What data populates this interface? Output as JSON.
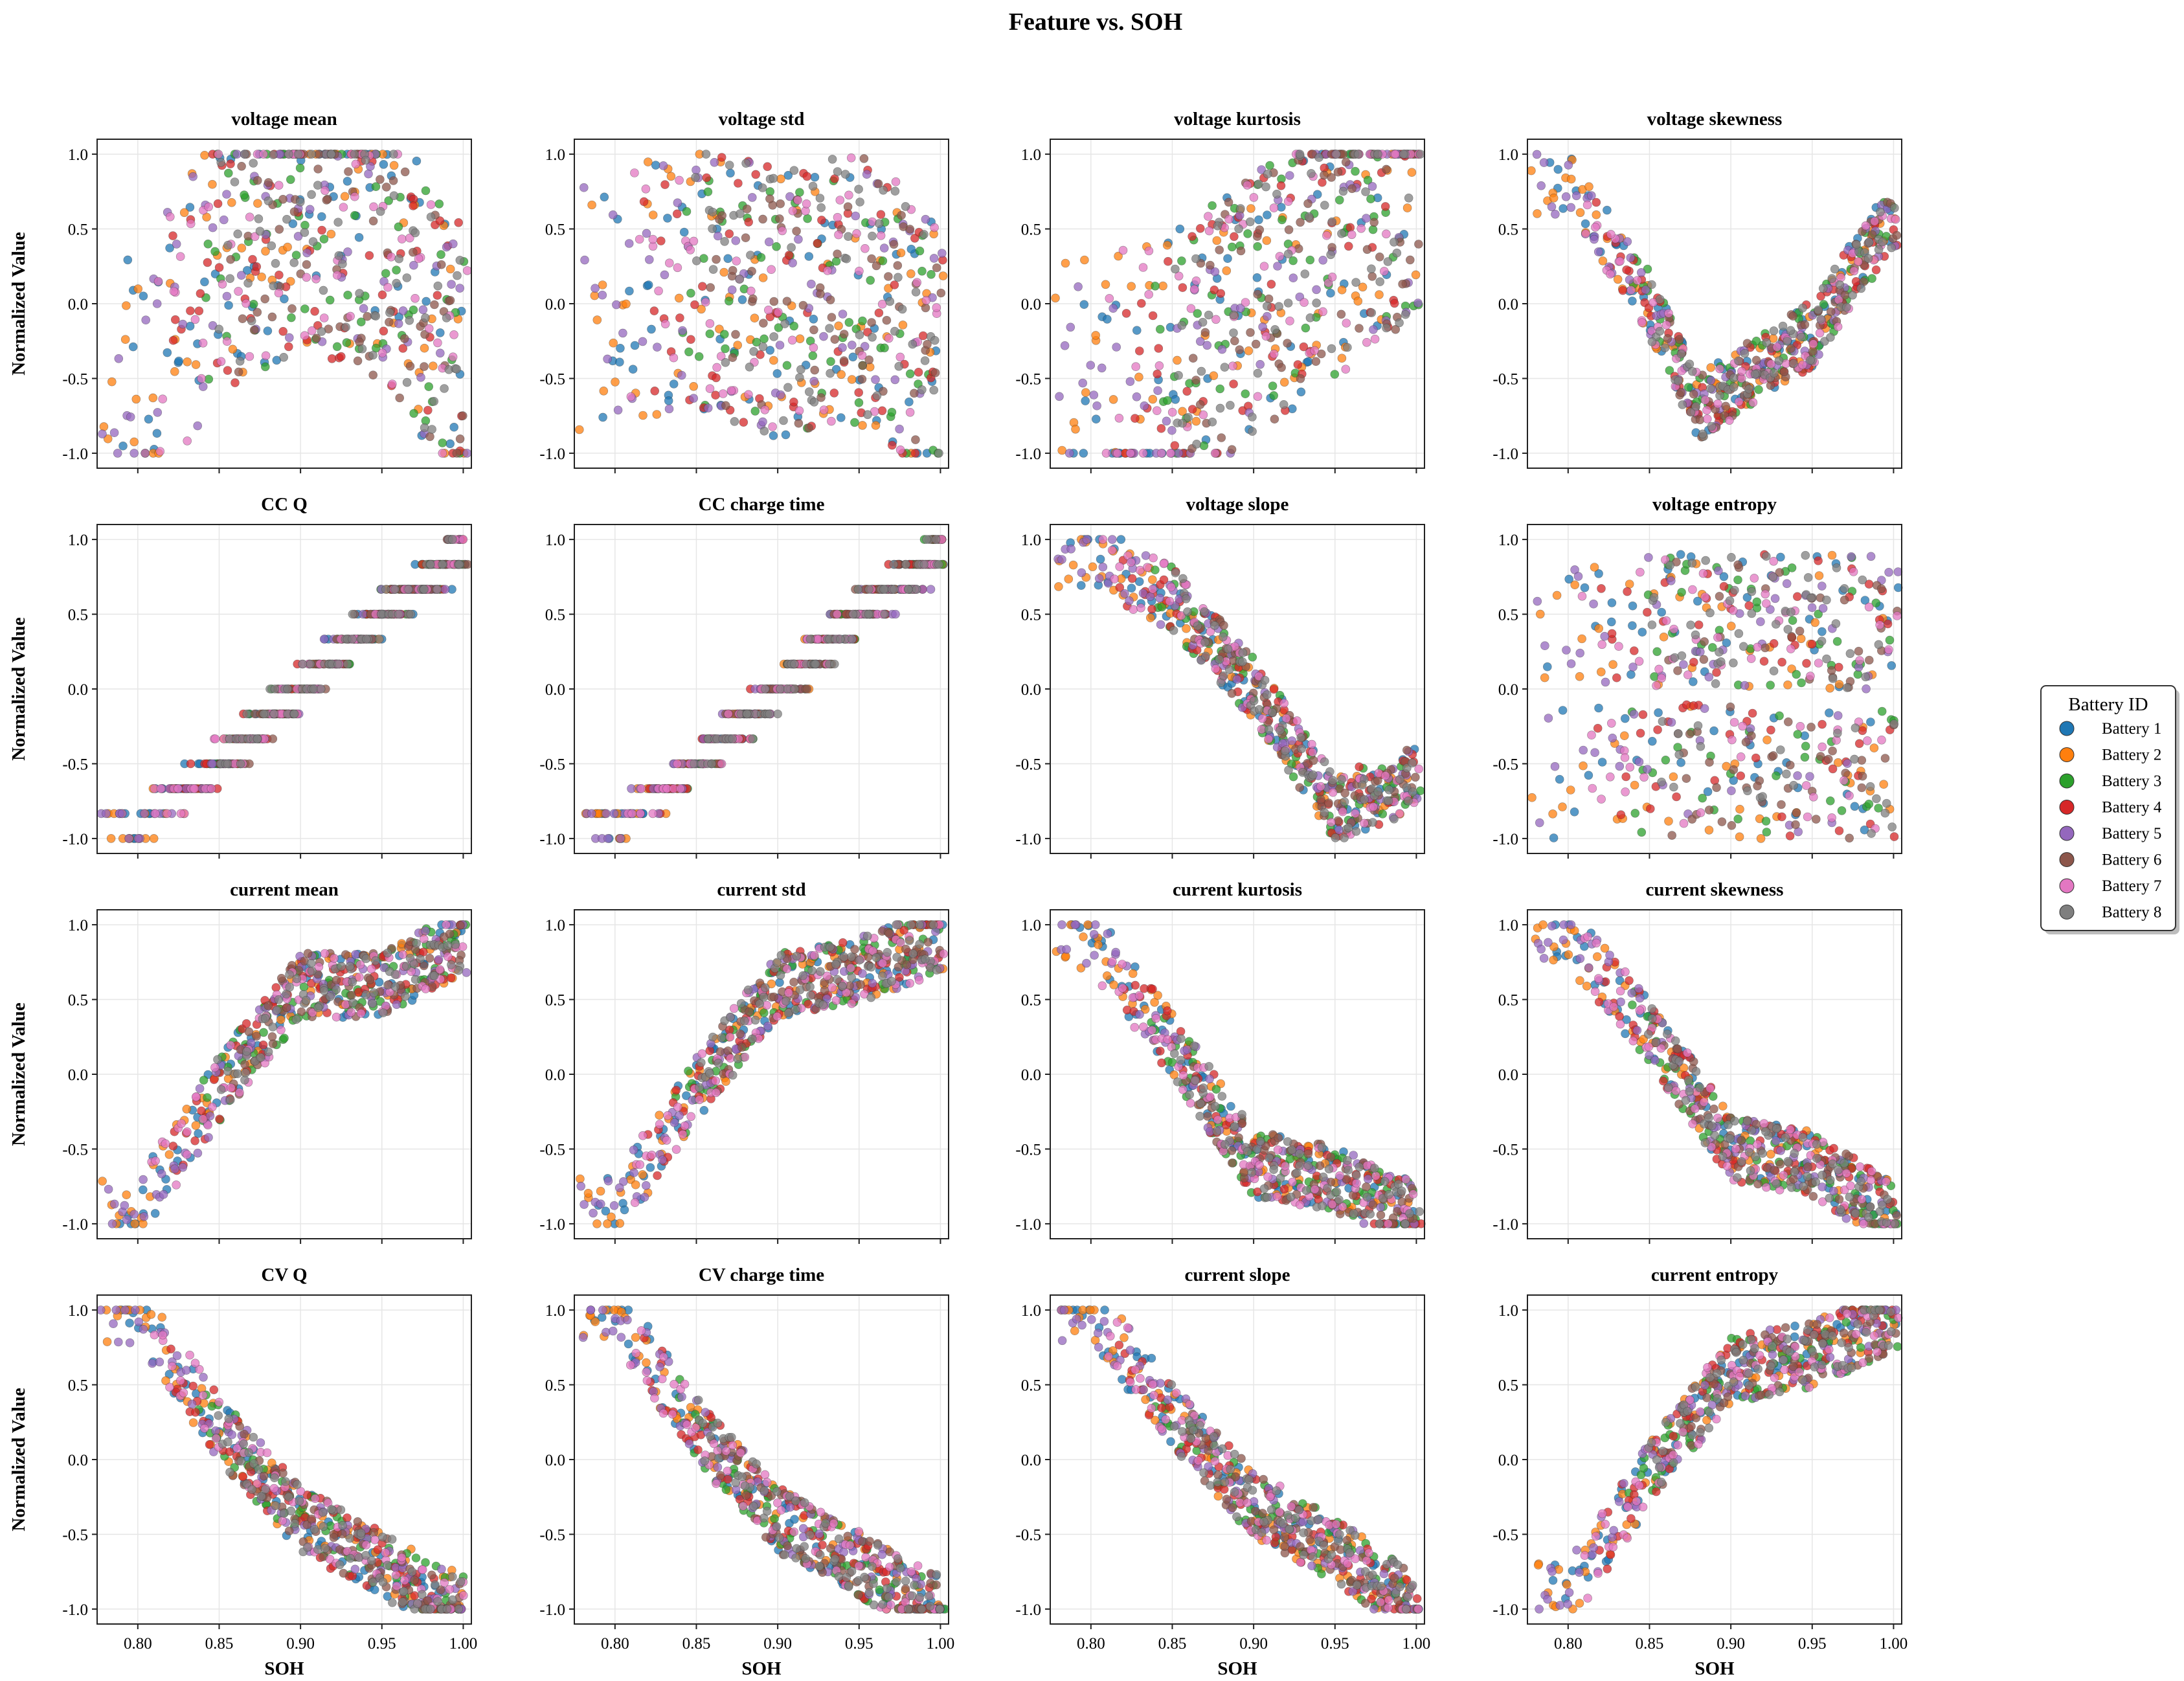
{
  "figure": {
    "title": "Feature vs. SOH",
    "xlabel": "SOH",
    "ylabel": "Normalized Value"
  },
  "legend": {
    "title": "Battery ID",
    "placement": "right",
    "items": [
      {
        "label": "Battery 1",
        "color": "#1f77b4"
      },
      {
        "label": "Battery 2",
        "color": "#ff7f0e"
      },
      {
        "label": "Battery 3",
        "color": "#2ca02c"
      },
      {
        "label": "Battery 4",
        "color": "#d62728"
      },
      {
        "label": "Battery 5",
        "color": "#9467bd"
      },
      {
        "label": "Battery 6",
        "color": "#8c564b"
      },
      {
        "label": "Battery 7",
        "color": "#e377c2"
      },
      {
        "label": "Battery 8",
        "color": "#7f7f7f"
      }
    ]
  },
  "chart_data": {
    "type": "scatter",
    "layout": "4x4 grid of subplots",
    "grid": true,
    "xlim": [
      0.775,
      1.005
    ],
    "ylim": [
      -1.1,
      1.1
    ],
    "xticks": [
      "0.80",
      "0.85",
      "0.90",
      "0.95",
      "1.00"
    ],
    "yticks": [
      "-1.0",
      "-0.5",
      "0.0",
      "0.5",
      "1.0"
    ],
    "battery_soh_start": [
      0.79,
      0.78,
      0.84,
      0.82,
      0.78,
      0.86,
      0.81,
      0.85
    ],
    "subplots": [
      {
        "title": "voltage mean",
        "trend": "cloud",
        "points_per_battery": [
          [
            0.8,
            -0.6
          ],
          [
            0.85,
            0.3
          ],
          [
            0.9,
            0.6
          ],
          [
            0.95,
            0.4
          ],
          [
            1.0,
            -0.4
          ]
        ]
      },
      {
        "title": "voltage std",
        "trend": "cloud",
        "points_per_battery": [
          [
            0.8,
            0.0
          ],
          [
            0.85,
            0.2
          ],
          [
            0.9,
            0.0
          ],
          [
            0.95,
            0.1
          ],
          [
            1.0,
            -0.3
          ]
        ]
      },
      {
        "title": "voltage kurtosis",
        "trend": "cloud",
        "points_per_battery": [
          [
            0.8,
            -0.6
          ],
          [
            0.85,
            -0.4
          ],
          [
            0.9,
            0.0
          ],
          [
            0.95,
            0.4
          ],
          [
            1.0,
            0.8
          ]
        ]
      },
      {
        "title": "voltage skewness",
        "trend": "valley",
        "points_per_battery": [
          [
            0.8,
            0.8
          ],
          [
            0.85,
            0.0
          ],
          [
            0.88,
            -0.7
          ],
          [
            0.95,
            -0.2
          ],
          [
            1.0,
            0.6
          ]
        ]
      },
      {
        "title": "CC Q",
        "trend": "banded",
        "points_per_battery": [
          [
            0.8,
            -0.9
          ],
          [
            0.85,
            -0.5
          ],
          [
            0.9,
            0.0
          ],
          [
            0.95,
            0.5
          ],
          [
            1.0,
            0.9
          ]
        ]
      },
      {
        "title": "CC charge time",
        "trend": "banded",
        "points_per_battery": [
          [
            0.8,
            -0.9
          ],
          [
            0.85,
            -0.5
          ],
          [
            0.9,
            0.0
          ],
          [
            0.95,
            0.5
          ],
          [
            1.0,
            0.9
          ]
        ]
      },
      {
        "title": "voltage slope",
        "trend": "decreasing",
        "points_per_battery": [
          [
            0.8,
            0.9
          ],
          [
            0.85,
            0.6
          ],
          [
            0.9,
            0.0
          ],
          [
            0.95,
            -0.8
          ],
          [
            1.0,
            -0.6
          ]
        ]
      },
      {
        "title": "voltage entropy",
        "trend": "two-cluster",
        "points_per_battery": [
          [
            0.8,
            0.5
          ],
          [
            0.85,
            -0.5
          ],
          [
            0.9,
            0.5
          ],
          [
            0.95,
            -0.5
          ],
          [
            1.0,
            0.4
          ]
        ]
      },
      {
        "title": "current mean",
        "trend": "increasing",
        "points_per_battery": [
          [
            0.8,
            -0.9
          ],
          [
            0.85,
            -0.1
          ],
          [
            0.9,
            0.6
          ],
          [
            0.95,
            0.6
          ],
          [
            1.0,
            0.9
          ]
        ]
      },
      {
        "title": "current std",
        "trend": "increasing",
        "points_per_battery": [
          [
            0.8,
            -0.9
          ],
          [
            0.85,
            -0.1
          ],
          [
            0.9,
            0.6
          ],
          [
            0.95,
            0.7
          ],
          [
            1.0,
            0.9
          ]
        ]
      },
      {
        "title": "current kurtosis",
        "trend": "decreasing",
        "points_per_battery": [
          [
            0.8,
            0.9
          ],
          [
            0.85,
            0.2
          ],
          [
            0.9,
            -0.6
          ],
          [
            0.95,
            -0.7
          ],
          [
            1.0,
            -0.95
          ]
        ]
      },
      {
        "title": "current skewness",
        "trend": "decreasing",
        "points_per_battery": [
          [
            0.8,
            0.9
          ],
          [
            0.85,
            0.3
          ],
          [
            0.9,
            -0.5
          ],
          [
            0.95,
            -0.6
          ],
          [
            1.0,
            -0.95
          ]
        ]
      },
      {
        "title": "CV Q",
        "trend": "decreasing",
        "points_per_battery": [
          [
            0.8,
            1.0
          ],
          [
            0.85,
            0.2
          ],
          [
            0.9,
            -0.4
          ],
          [
            0.95,
            -0.7
          ],
          [
            1.0,
            -1.0
          ]
        ]
      },
      {
        "title": "CV charge time",
        "trend": "decreasing",
        "points_per_battery": [
          [
            0.8,
            1.0
          ],
          [
            0.85,
            0.2
          ],
          [
            0.9,
            -0.4
          ],
          [
            0.95,
            -0.7
          ],
          [
            1.0,
            -1.0
          ]
        ]
      },
      {
        "title": "current slope",
        "trend": "decreasing",
        "points_per_battery": [
          [
            0.8,
            1.0
          ],
          [
            0.85,
            0.3
          ],
          [
            0.9,
            -0.3
          ],
          [
            0.95,
            -0.6
          ],
          [
            1.0,
            -1.0
          ]
        ]
      },
      {
        "title": "current entropy",
        "trend": "increasing",
        "points_per_battery": [
          [
            0.8,
            -0.9
          ],
          [
            0.85,
            -0.1
          ],
          [
            0.9,
            0.6
          ],
          [
            0.95,
            0.7
          ],
          [
            1.0,
            0.95
          ]
        ]
      }
    ]
  }
}
